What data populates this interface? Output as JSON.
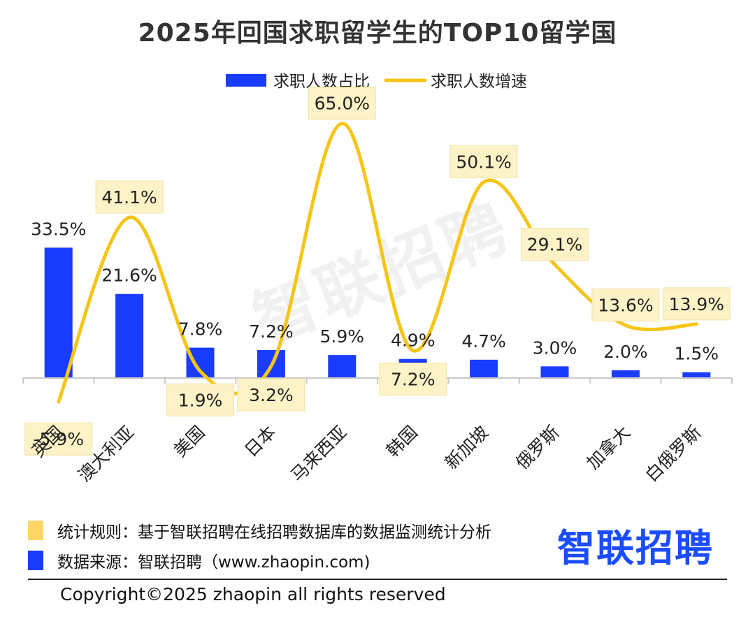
{
  "chart_data": {
    "type": "bar+line",
    "title": "2025年回国求职留学生的TOP10留学国",
    "categories": [
      "英国",
      "澳大利亚",
      "美国",
      "日本",
      "马来西亚",
      "韩国",
      "新加坡",
      "俄罗斯",
      "加拿大",
      "白俄罗斯"
    ],
    "series": [
      {
        "name": "求职人数占比",
        "type": "bar",
        "color": "#1a3cff",
        "values": [
          33.5,
          21.6,
          7.8,
          7.2,
          5.9,
          4.9,
          4.7,
          3.0,
          2.0,
          1.5
        ],
        "labels": [
          "33.5%",
          "21.6%",
          "7.8%",
          "7.2%",
          "5.9%",
          "4.9%",
          "4.7%",
          "3.0%",
          "2.0%",
          "1.5%"
        ]
      },
      {
        "name": "求职人数增速",
        "type": "line",
        "color": "#f5c518",
        "values": [
          -5.9,
          41.1,
          1.9,
          3.2,
          65.0,
          7.2,
          50.1,
          29.1,
          13.6,
          13.9
        ],
        "labels": [
          "-5.9%",
          "41.1%",
          "1.9%",
          "3.2%",
          "65.0%",
          "7.2%",
          "50.1%",
          "29.1%",
          "13.6%",
          "13.9%"
        ]
      }
    ],
    "legend_position": "top-center",
    "grid": false
  },
  "notes": {
    "rule": "统计规则：基于智联招聘在线招聘数据库的数据监测统计分析",
    "source": "数据来源：智联招聘（www.zhaopin.com)",
    "rule_color": "#fdd663",
    "source_color": "#1a3cff"
  },
  "brand": "智联招聘",
  "watermark": "智联招聘",
  "copyright": "Copyright©2025 zhaopin all rights reserved"
}
